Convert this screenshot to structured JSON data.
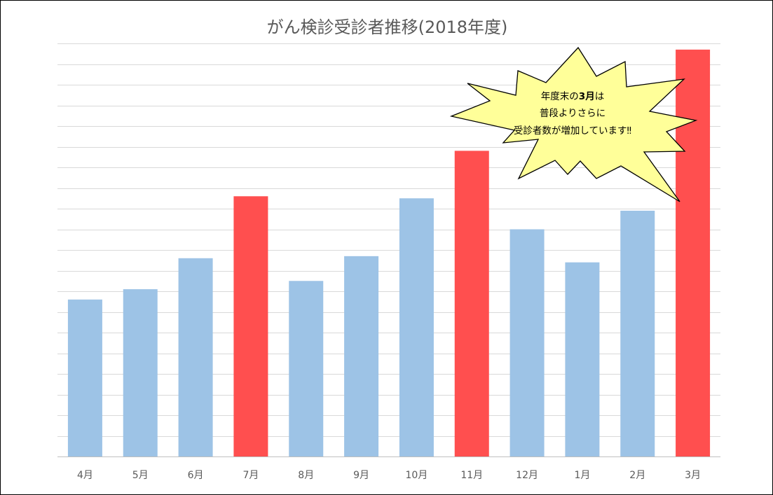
{
  "chart_data": {
    "type": "bar",
    "title": "がん検診受診者推移(2018年度)",
    "xlabel": "",
    "ylabel": "",
    "categories": [
      "4月",
      "5月",
      "6月",
      "7月",
      "8月",
      "9月",
      "10月",
      "11月",
      "12月",
      "1月",
      "2月",
      "3月"
    ],
    "series": [
      {
        "values": [
          38,
          40.5,
          48,
          63,
          42.5,
          48.5,
          62.5,
          74,
          55,
          47,
          59.5,
          98.5
        ]
      }
    ],
    "highlighted": [
      "7月",
      "11月",
      "3月"
    ],
    "ylim": [
      0,
      100
    ],
    "grid": true,
    "colors": {
      "normal": "#9DC3E6",
      "highlight": "#FF4F4F",
      "grid": "#D9D9D9",
      "axis": "#BFBFBF"
    },
    "annotation": {
      "shape": "explosion",
      "fill": "#FFFF99",
      "lines": [
        [
          {
            "text": "年度末の",
            "bold": false
          },
          {
            "text": "3月",
            "bold": true
          },
          {
            "text": "は",
            "bold": false
          }
        ],
        [
          {
            "text": "普段よりさらに",
            "bold": false
          }
        ],
        [
          {
            "text": "受診者数が増加しています‼",
            "bold": false
          }
        ]
      ]
    }
  }
}
